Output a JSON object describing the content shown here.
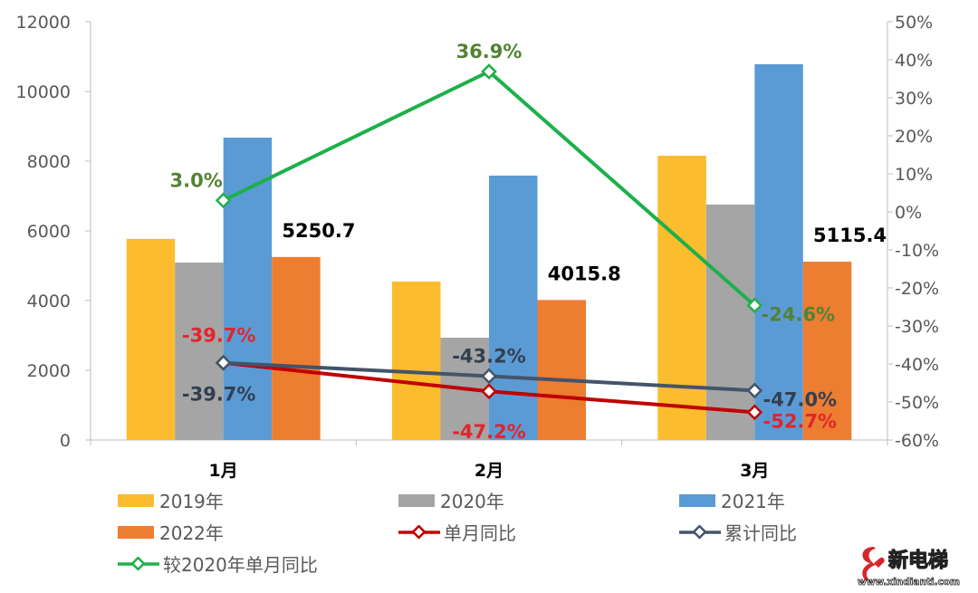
{
  "chart_data": {
    "type": "bar",
    "categories": [
      "1月",
      "2月",
      "3月"
    ],
    "y_left": {
      "ylim": [
        0,
        12000
      ],
      "ticks": [
        0,
        2000,
        4000,
        6000,
        8000,
        10000,
        12000
      ]
    },
    "y_right": {
      "ylim": [
        -60,
        50
      ],
      "ticks": [
        "50%",
        "40%",
        "30%",
        "20%",
        "10%",
        "0%",
        "-10%",
        "-20%",
        "-30%",
        "-40%",
        "-50%",
        "-60%"
      ]
    },
    "bar_series": [
      {
        "name": "2019年",
        "color": "#FBBC2E",
        "values": [
          5770,
          4545,
          8155
        ]
      },
      {
        "name": "2020年",
        "color": "#A5A5A5",
        "values": [
          5090,
          2935,
          6755
        ]
      },
      {
        "name": "2021年",
        "color": "#5B9BD5",
        "values": [
          8675,
          7585,
          10780
        ]
      },
      {
        "name": "2022年",
        "color": "#ED7D31",
        "values": [
          5250.7,
          4015.8,
          5115.4
        ],
        "labels": [
          "5250.7",
          "4015.8",
          "5115.4"
        ]
      }
    ],
    "line_series": [
      {
        "name": "单月同比",
        "color": "#C00000",
        "values": [
          -39.7,
          -47.2,
          -52.7
        ],
        "labels": [
          "-39.7%",
          "-47.2%",
          "-52.7%"
        ],
        "label_color": "#E0262B"
      },
      {
        "name": "累计同比",
        "color": "#44546A",
        "values": [
          -39.7,
          -43.2,
          -47.0
        ],
        "labels": [
          "-39.7%",
          "-43.2%",
          "-47.0%"
        ],
        "label_color": "#333F50"
      },
      {
        "name": "较2020年单月同比",
        "color": "#1DB04B",
        "values": [
          3.0,
          36.9,
          -24.6
        ],
        "labels": [
          "3.0%",
          "36.9%",
          "-24.6%"
        ],
        "label_color": "#548235"
      }
    ],
    "legend_placement": "bottom",
    "grid": false
  },
  "watermark": {
    "text": "新电梯",
    "url_text": "www.xindianti.com"
  }
}
